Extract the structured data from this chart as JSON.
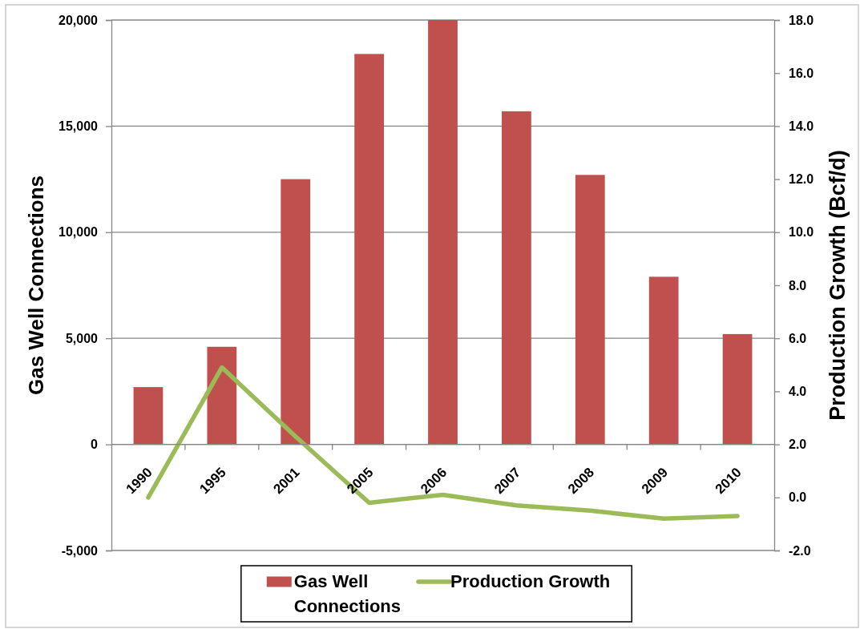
{
  "chart_data": {
    "type": "bar",
    "categories": [
      "1990",
      "1995",
      "2001",
      "2005",
      "2006",
      "2007",
      "2008",
      "2009",
      "2010"
    ],
    "series": [
      {
        "name": "Gas Well Connections",
        "color": "#c0504d",
        "values": [
          2700,
          4600,
          12500,
          18400,
          20000,
          15700,
          12700,
          7900,
          5200
        ]
      },
      {
        "name": "Production Growth",
        "type": "line",
        "axis": "y2",
        "color": "#9bbb59",
        "values": [
          0.0,
          4.9,
          2.3,
          -0.2,
          0.1,
          -0.3,
          -0.5,
          -0.8,
          -0.7
        ]
      }
    ],
    "ylabel": "Gas Well Connections",
    "y2label": "Production Growth (Bcf/d)",
    "ylim": [
      -5000,
      20000
    ],
    "yticks": [
      {
        "value": -5000,
        "label": "-5,000"
      },
      0,
      {
        "value": 5000,
        "label": "5,000"
      },
      {
        "value": 10000,
        "label": "10,000"
      },
      {
        "value": 15000,
        "label": "15,000"
      },
      {
        "value": 20000,
        "label": "20,000"
      }
    ],
    "y2lim": [
      -2,
      18
    ],
    "y2ticks": [
      {
        "value": -2,
        "label": "-2.0"
      },
      {
        "value": 0,
        "label": "0.0"
      },
      {
        "value": 2,
        "label": "2.0"
      },
      {
        "value": 4,
        "label": "4.0"
      },
      {
        "value": 6,
        "label": "6.0"
      },
      {
        "value": 8,
        "label": "8.0"
      },
      {
        "value": 10,
        "label": "10.0"
      },
      {
        "value": 12,
        "label": "12.0"
      },
      {
        "value": 14,
        "label": "14.0"
      },
      {
        "value": 16,
        "label": "16.0"
      },
      {
        "value": 18,
        "label": "18.0"
      }
    ],
    "grid": "y",
    "legend": "bottom"
  }
}
